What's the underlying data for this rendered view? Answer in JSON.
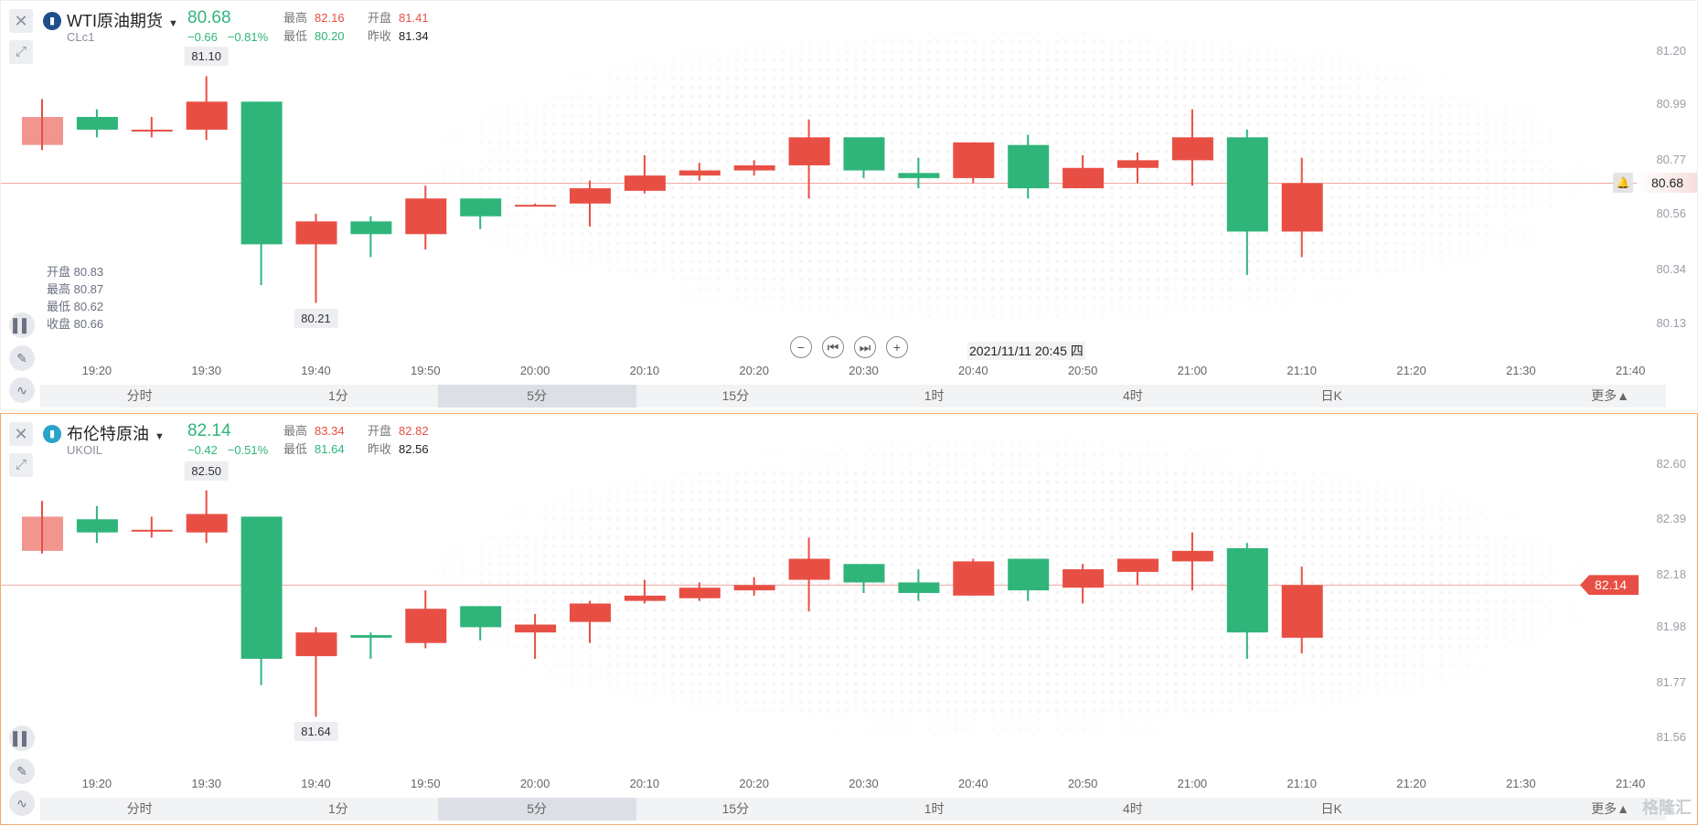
{
  "colors": {
    "up": "#e84f44",
    "down": "#2fb57a",
    "axis": "#9a9ea8"
  },
  "tabs": [
    "分时",
    "1分",
    "5分",
    "15分",
    "1时",
    "4时",
    "日K",
    "更多▲"
  ],
  "selected_tab": "5分",
  "time_labels": [
    "19:20",
    "19:30",
    "19:40",
    "19:50",
    "20:00",
    "20:10",
    "20:20",
    "20:30",
    "20:40",
    "20:50",
    "21:00",
    "21:10",
    "21:20",
    "21:30",
    "21:40"
  ],
  "crosshair_date": "2021/11/11 20:45 四",
  "ohlc_legend": {
    "open": "开盘 80.83",
    "high": "最高 80.87",
    "low": "最低 80.62",
    "close": "收盘 80.66"
  },
  "watermark": "格隆汇",
  "panels": [
    {
      "name": "WTI原油期货",
      "code": "CLc1",
      "icon": "bar-chart-icon",
      "icon_color": "#1f4e8c",
      "price": "80.68",
      "change": "−0.66",
      "change_pct": "−0.81%",
      "high_label": "最高",
      "high": "82.16",
      "open_label": "开盘",
      "open": "81.41",
      "low_label": "最低",
      "low": "80.20",
      "prev_label": "昨收",
      "prev": "81.34",
      "max_label": "81.10",
      "min_label": "80.21",
      "current": "80.68",
      "current_value": 80.68,
      "axis_ticks": [
        "81.20",
        "80.99",
        "80.77",
        "80.56",
        "80.34",
        "80.13"
      ],
      "candles": [
        [
          80.83,
          80.94,
          81.01,
          80.81
        ],
        [
          80.94,
          80.89,
          80.97,
          80.86
        ],
        [
          80.89,
          80.89,
          80.94,
          80.86
        ],
        [
          80.89,
          81.0,
          81.1,
          80.85
        ],
        [
          81.0,
          80.44,
          81.0,
          80.28
        ],
        [
          80.44,
          80.53,
          80.56,
          80.21
        ],
        [
          80.53,
          80.48,
          80.55,
          80.39
        ],
        [
          80.48,
          80.62,
          80.67,
          80.42
        ],
        [
          80.62,
          80.55,
          80.62,
          80.5
        ],
        [
          80.59,
          80.595,
          80.6,
          80.59
        ],
        [
          80.6,
          80.66,
          80.69,
          80.51
        ],
        [
          80.65,
          80.71,
          80.79,
          80.64
        ],
        [
          80.71,
          80.73,
          80.76,
          80.69
        ],
        [
          80.73,
          80.75,
          80.77,
          80.71
        ],
        [
          80.75,
          80.86,
          80.93,
          80.62
        ],
        [
          80.86,
          80.73,
          80.86,
          80.7
        ],
        [
          80.72,
          80.7,
          80.78,
          80.66
        ],
        [
          80.7,
          80.84,
          80.84,
          80.68
        ],
        [
          80.83,
          80.66,
          80.87,
          80.62
        ],
        [
          80.66,
          80.74,
          80.79,
          80.66
        ],
        [
          80.74,
          80.77,
          80.8,
          80.68
        ],
        [
          80.77,
          80.86,
          80.97,
          80.67
        ],
        [
          80.86,
          80.49,
          80.89,
          80.32
        ],
        [
          80.49,
          80.68,
          80.78,
          80.39
        ]
      ]
    },
    {
      "name": "布伦特原油",
      "code": "UKOIL",
      "icon": "oil-icon",
      "icon_color": "#2aa3c9",
      "price": "82.14",
      "change": "−0.42",
      "change_pct": "−0.51%",
      "high_label": "最高",
      "high": "83.34",
      "open_label": "开盘",
      "open": "82.82",
      "low_label": "最低",
      "low": "81.64",
      "prev_label": "昨收",
      "prev": "82.56",
      "max_label": "82.50",
      "min_label": "81.64",
      "current": "82.14",
      "current_value": 82.14,
      "axis_ticks": [
        "82.60",
        "82.39",
        "82.18",
        "81.98",
        "81.77",
        "81.56"
      ],
      "candles": [
        [
          82.27,
          82.4,
          82.46,
          82.26
        ],
        [
          82.39,
          82.34,
          82.44,
          82.3
        ],
        [
          82.35,
          82.35,
          82.4,
          82.32
        ],
        [
          82.34,
          82.41,
          82.5,
          82.3
        ],
        [
          82.4,
          81.86,
          82.4,
          81.76
        ],
        [
          81.87,
          81.96,
          81.98,
          81.64
        ],
        [
          81.95,
          81.94,
          81.96,
          81.86
        ],
        [
          81.92,
          82.05,
          82.12,
          81.9
        ],
        [
          82.06,
          81.98,
          82.06,
          81.93
        ],
        [
          81.96,
          81.99,
          82.03,
          81.86
        ],
        [
          82.0,
          82.07,
          82.08,
          81.92
        ],
        [
          82.08,
          82.1,
          82.16,
          82.07
        ],
        [
          82.09,
          82.13,
          82.15,
          82.08
        ],
        [
          82.12,
          82.14,
          82.17,
          82.1
        ],
        [
          82.16,
          82.24,
          82.32,
          82.04
        ],
        [
          82.22,
          82.15,
          82.22,
          82.11
        ],
        [
          82.15,
          82.11,
          82.2,
          82.08
        ],
        [
          82.1,
          82.23,
          82.24,
          82.1
        ],
        [
          82.24,
          82.12,
          82.24,
          82.08
        ],
        [
          82.13,
          82.2,
          82.22,
          82.07
        ],
        [
          82.19,
          82.24,
          82.24,
          82.14
        ],
        [
          82.23,
          82.27,
          82.34,
          82.12
        ],
        [
          82.28,
          81.96,
          82.3,
          81.86
        ],
        [
          81.94,
          82.14,
          82.21,
          81.88
        ]
      ]
    }
  ]
}
